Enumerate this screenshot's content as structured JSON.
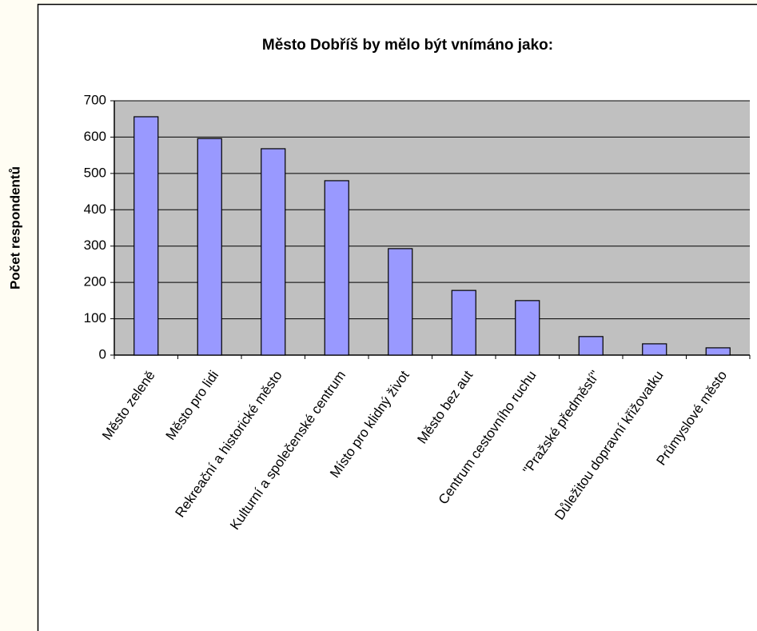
{
  "chart_data": {
    "type": "bar",
    "title": "Město Dobříš by mělo být vnímáno jako:",
    "y_label": "Počet respondentů",
    "categories": [
      "Město zeleně",
      "Město pro lidi",
      "Rekreační a historické město",
      "Kulturní a společenské centrum",
      "Místo pro klidný život",
      "Město bez aut",
      "Centrum cestovního ruchu",
      "\"Pražské předměstí\"",
      "Důležitou dopravní křižovatku",
      "Průmyslové město"
    ],
    "values": [
      656,
      596,
      568,
      480,
      293,
      178,
      150,
      51,
      31,
      20
    ],
    "color": "#9999ff",
    "ylim": [
      0,
      700
    ],
    "yticks": [
      0,
      100,
      200,
      300,
      400,
      500,
      600,
      700
    ],
    "grid": true
  }
}
